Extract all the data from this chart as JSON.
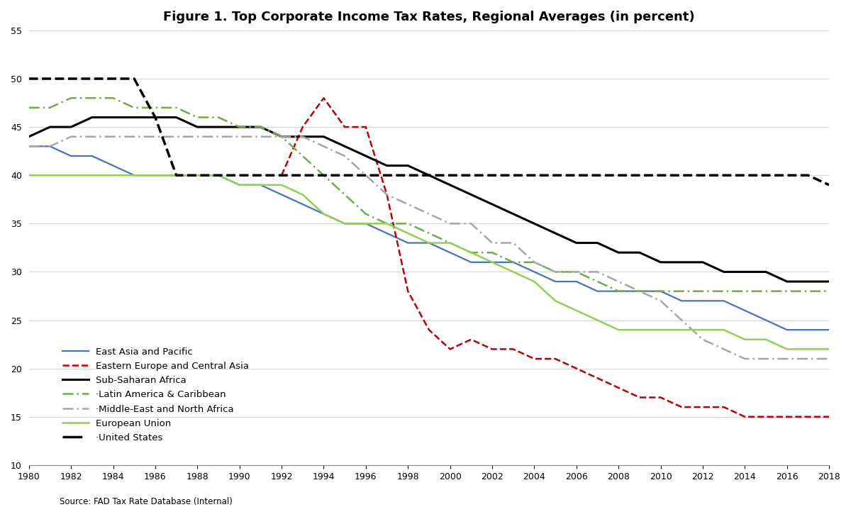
{
  "title": "Figure 1. Top Corporate Income Tax Rates, Regional Averages (in percent)",
  "source": "Source: FAD Tax Rate Database (Internal)",
  "years": [
    1980,
    1981,
    1982,
    1983,
    1984,
    1985,
    1986,
    1987,
    1988,
    1989,
    1990,
    1991,
    1992,
    1993,
    1994,
    1995,
    1996,
    1997,
    1998,
    1999,
    2000,
    2001,
    2002,
    2003,
    2004,
    2005,
    2006,
    2007,
    2008,
    2009,
    2010,
    2011,
    2012,
    2013,
    2014,
    2015,
    2016,
    2017,
    2018
  ],
  "series": {
    "East Asia and Pacific": {
      "color": "#4472C4",
      "linestyle": "solid",
      "linewidth": 1.6,
      "data": [
        43,
        43,
        42,
        42,
        41,
        40,
        40,
        40,
        40,
        40,
        39,
        39,
        38,
        37,
        36,
        35,
        35,
        34,
        33,
        33,
        32,
        31,
        31,
        31,
        30,
        29,
        29,
        28,
        28,
        28,
        28,
        27,
        27,
        27,
        26,
        25,
        24,
        24,
        24
      ]
    },
    "Eastern Europe and Central Asia": {
      "color": "#C00000",
      "linestyle": "dashed",
      "linewidth": 1.8,
      "data": [
        null,
        null,
        null,
        null,
        null,
        null,
        null,
        null,
        null,
        null,
        null,
        null,
        40,
        45,
        48,
        45,
        45,
        38,
        28,
        24,
        22,
        23,
        22,
        22,
        21,
        21,
        20,
        19,
        18,
        17,
        17,
        16,
        16,
        16,
        15,
        15,
        15,
        15,
        15
      ]
    },
    "Sub-Saharan Africa": {
      "color": "#000000",
      "linestyle": "solid",
      "linewidth": 2.2,
      "data": [
        44,
        45,
        45,
        46,
        46,
        46,
        46,
        46,
        45,
        45,
        45,
        45,
        44,
        44,
        44,
        43,
        42,
        41,
        41,
        40,
        39,
        38,
        37,
        36,
        35,
        34,
        33,
        33,
        32,
        32,
        31,
        31,
        31,
        30,
        30,
        30,
        29,
        29,
        29
      ]
    },
    "Latin America & Caribbean": {
      "color": "#70AD47",
      "linestyle": [
        6,
        2,
        1,
        2
      ],
      "linewidth": 1.8,
      "data": [
        47,
        47,
        48,
        48,
        48,
        47,
        47,
        47,
        46,
        46,
        45,
        45,
        44,
        42,
        40,
        38,
        36,
        35,
        35,
        34,
        33,
        32,
        32,
        31,
        31,
        30,
        30,
        29,
        28,
        28,
        28,
        28,
        28,
        28,
        28,
        28,
        28,
        28,
        28
      ]
    },
    "Middle-East and North Africa": {
      "color": "#A5A5A5",
      "linestyle": [
        6,
        2,
        1,
        2
      ],
      "linewidth": 1.8,
      "data": [
        43,
        43,
        44,
        44,
        44,
        44,
        44,
        44,
        44,
        44,
        44,
        44,
        44,
        44,
        43,
        42,
        40,
        38,
        37,
        36,
        35,
        35,
        33,
        33,
        31,
        30,
        30,
        30,
        29,
        28,
        27,
        25,
        23,
        22,
        21,
        21,
        21,
        21,
        21
      ]
    },
    "European Union": {
      "color": "#70AD47",
      "linestyle": "solid",
      "linewidth": 1.8,
      "lighter": true,
      "data": [
        40,
        40,
        40,
        40,
        40,
        40,
        40,
        40,
        40,
        40,
        39,
        39,
        39,
        38,
        36,
        35,
        35,
        35,
        34,
        33,
        33,
        32,
        31,
        30,
        29,
        27,
        26,
        25,
        24,
        24,
        24,
        24,
        24,
        24,
        23,
        23,
        22,
        22,
        22
      ]
    },
    "United States": {
      "color": "#000000",
      "linestyle": "dashed",
      "linewidth": 2.5,
      "data": [
        50,
        50,
        50,
        50,
        50,
        50,
        46,
        40,
        40,
        40,
        40,
        40,
        40,
        40,
        40,
        40,
        40,
        40,
        40,
        40,
        40,
        40,
        40,
        40,
        40,
        40,
        40,
        40,
        40,
        40,
        40,
        40,
        40,
        40,
        40,
        40,
        40,
        40,
        39
      ]
    }
  },
  "xlim": [
    1980,
    2018
  ],
  "ylim": [
    10,
    55
  ],
  "yticks": [
    10,
    15,
    20,
    25,
    30,
    35,
    40,
    45,
    50,
    55
  ],
  "xticks": [
    1980,
    1982,
    1984,
    1986,
    1988,
    1990,
    1992,
    1994,
    1996,
    1998,
    2000,
    2002,
    2004,
    2006,
    2008,
    2010,
    2012,
    2014,
    2016,
    2018
  ],
  "background_color": "#FFFFFF"
}
